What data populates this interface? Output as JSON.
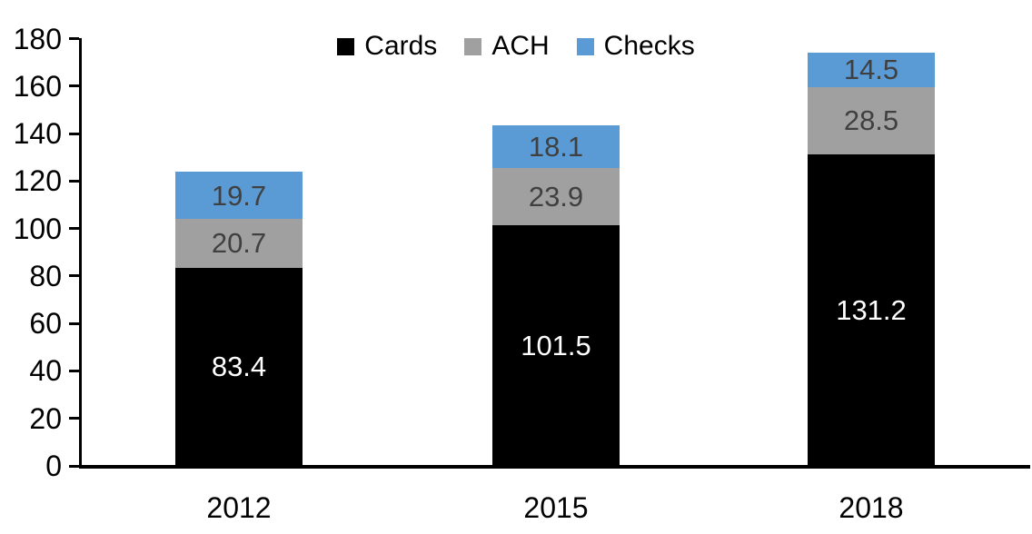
{
  "chart_data": {
    "type": "bar",
    "stacked": true,
    "title": "",
    "xlabel": "",
    "ylabel": "",
    "categories": [
      "2012",
      "2015",
      "2018"
    ],
    "series": [
      {
        "name": "Cards",
        "color": "#000000",
        "label_color": "#ffffff",
        "values": [
          83.4,
          101.5,
          131.2
        ]
      },
      {
        "name": "ACH",
        "color": "#A0A0A0",
        "label_color": "#404040",
        "values": [
          20.7,
          23.9,
          28.5
        ]
      },
      {
        "name": "Checks",
        "color": "#5B9BD5",
        "label_color": "#404040",
        "values": [
          19.7,
          18.1,
          14.5
        ]
      }
    ],
    "totals": [
      123.8,
      143.5,
      174.2
    ],
    "ylim": [
      0,
      180
    ],
    "ytick_step": 20,
    "ytick_labels": [
      "0",
      "20",
      "40",
      "60",
      "80",
      "100",
      "120",
      "140",
      "160",
      "180"
    ],
    "grid": false,
    "legend_position": "top",
    "data_labels": true
  },
  "colors": {
    "axis": "#000000",
    "background": "#ffffff",
    "tick_label": "#000000"
  }
}
